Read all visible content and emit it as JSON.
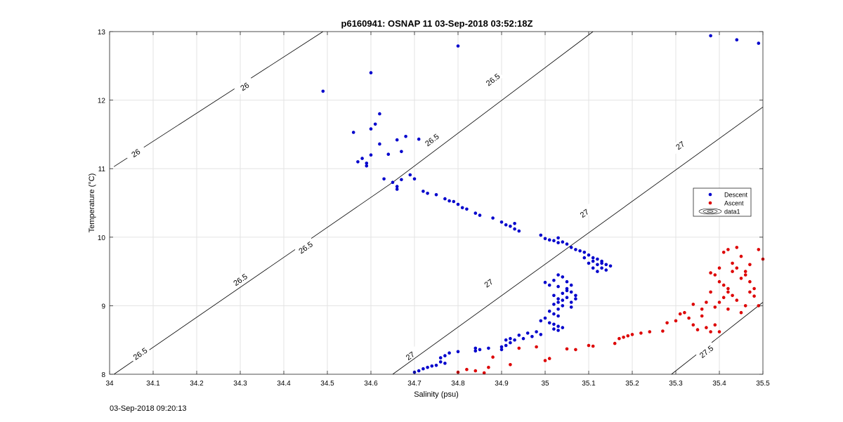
{
  "chart_data": {
    "type": "scatter",
    "title": "p6160941: OSNAP 11 03-Sep-2018 03:52:18Z",
    "xlabel": "Salinity (psu)",
    "ylabel": "Temperature (°C)",
    "xlim": [
      34,
      35.5
    ],
    "ylim": [
      8,
      13
    ],
    "xticks": [
      "34",
      "34.1",
      "34.2",
      "34.3",
      "34.4",
      "34.5",
      "34.6",
      "34.7",
      "34.8",
      "34.9",
      "35",
      "35.1",
      "35.2",
      "35.3",
      "35.4",
      "35.5"
    ],
    "yticks": [
      "8",
      "9",
      "10",
      "11",
      "12",
      "13"
    ],
    "grid": true,
    "legend": {
      "placement": "right",
      "entries": [
        {
          "label": "Descent",
          "color": "#0000cc",
          "marker": "dot"
        },
        {
          "label": "Ascent",
          "color": "#dd0000",
          "marker": "dot"
        },
        {
          "label": "data1",
          "color": "#000000",
          "marker": "contour"
        }
      ]
    },
    "contours": [
      {
        "value": "26",
        "segments": [
          [
            [
              34.01,
              11.03
            ],
            [
              34.49,
              13.0
            ]
          ]
        ],
        "labels": [
          {
            "x": 34.31,
            "y": 12.2,
            "text": "26"
          },
          {
            "x": 34.06,
            "y": 11.23,
            "text": "26"
          }
        ]
      },
      {
        "value": "26.5",
        "segments": [
          [
            [
              34.01,
              8.0
            ],
            [
              34.65,
              10.8
            ],
            [
              35.11,
              13.0
            ]
          ]
        ],
        "labels": [
          {
            "x": 34.88,
            "y": 12.3,
            "text": "26.5"
          },
          {
            "x": 34.74,
            "y": 11.42,
            "text": "26.5"
          },
          {
            "x": 34.45,
            "y": 9.85,
            "text": "26.5"
          },
          {
            "x": 34.3,
            "y": 9.38,
            "text": "26.5"
          },
          {
            "x": 34.07,
            "y": 8.3,
            "text": "26.5"
          }
        ]
      },
      {
        "value": "27",
        "segments": [
          [
            [
              34.65,
              8.0
            ],
            [
              35.5,
              11.9
            ]
          ]
        ],
        "labels": [
          {
            "x": 35.31,
            "y": 11.34,
            "text": "27"
          },
          {
            "x": 35.09,
            "y": 10.35,
            "text": "27"
          },
          {
            "x": 34.87,
            "y": 9.33,
            "text": "27"
          },
          {
            "x": 34.69,
            "y": 8.27,
            "text": "27"
          }
        ]
      },
      {
        "value": "27.5",
        "segments": [
          [
            [
              35.29,
              8.0
            ],
            [
              35.5,
              9.05
            ]
          ]
        ],
        "labels": [
          {
            "x": 35.37,
            "y": 8.33,
            "text": "27.5"
          }
        ]
      }
    ],
    "series": [
      {
        "name": "Descent",
        "color": "#0000cc",
        "points": [
          [
            34.49,
            12.13
          ],
          [
            34.6,
            12.4
          ],
          [
            34.8,
            12.79
          ],
          [
            35.38,
            12.94
          ],
          [
            35.44,
            12.88
          ],
          [
            35.49,
            12.83
          ],
          [
            34.56,
            11.53
          ],
          [
            34.6,
            11.58
          ],
          [
            34.61,
            11.65
          ],
          [
            34.62,
            11.8
          ],
          [
            34.62,
            11.36
          ],
          [
            34.6,
            11.2
          ],
          [
            34.64,
            11.21
          ],
          [
            34.66,
            11.42
          ],
          [
            34.68,
            11.47
          ],
          [
            34.71,
            11.43
          ],
          [
            34.67,
            11.25
          ],
          [
            34.58,
            11.15
          ],
          [
            34.59,
            11.08
          ],
          [
            34.59,
            11.04
          ],
          [
            34.57,
            11.1
          ],
          [
            34.63,
            10.85
          ],
          [
            34.65,
            10.8
          ],
          [
            34.66,
            10.74
          ],
          [
            34.66,
            10.7
          ],
          [
            34.67,
            10.84
          ],
          [
            34.69,
            10.91
          ],
          [
            34.7,
            10.85
          ],
          [
            34.72,
            10.67
          ],
          [
            34.73,
            10.64
          ],
          [
            34.75,
            10.62
          ],
          [
            34.77,
            10.56
          ],
          [
            34.78,
            10.53
          ],
          [
            34.79,
            10.52
          ],
          [
            34.8,
            10.48
          ],
          [
            34.81,
            10.43
          ],
          [
            34.82,
            10.41
          ],
          [
            34.84,
            10.35
          ],
          [
            34.85,
            10.32
          ],
          [
            34.88,
            10.28
          ],
          [
            34.9,
            10.22
          ],
          [
            34.91,
            10.18
          ],
          [
            34.92,
            10.16
          ],
          [
            34.93,
            10.12
          ],
          [
            34.94,
            10.09
          ],
          [
            34.93,
            10.2
          ],
          [
            34.99,
            10.03
          ],
          [
            35.0,
            9.98
          ],
          [
            35.01,
            9.96
          ],
          [
            35.02,
            9.95
          ],
          [
            35.03,
            9.99
          ],
          [
            35.04,
            9.93
          ],
          [
            35.05,
            9.9
          ],
          [
            35.03,
            9.92
          ],
          [
            35.06,
            9.85
          ],
          [
            35.07,
            9.82
          ],
          [
            35.08,
            9.8
          ],
          [
            35.09,
            9.78
          ],
          [
            35.1,
            9.74
          ],
          [
            35.09,
            9.7
          ],
          [
            35.11,
            9.7
          ],
          [
            35.12,
            9.68
          ],
          [
            35.13,
            9.65
          ],
          [
            35.14,
            9.6
          ],
          [
            35.15,
            9.58
          ],
          [
            35.13,
            9.55
          ],
          [
            35.12,
            9.6
          ],
          [
            35.14,
            9.52
          ],
          [
            35.12,
            9.5
          ],
          [
            35.11,
            9.55
          ],
          [
            35.13,
            9.62
          ],
          [
            35.1,
            9.62
          ],
          [
            35.11,
            9.65
          ],
          [
            35.03,
            9.45
          ],
          [
            35.04,
            9.42
          ],
          [
            35.02,
            9.37
          ],
          [
            35.0,
            9.34
          ],
          [
            35.01,
            9.3
          ],
          [
            35.03,
            9.28
          ],
          [
            35.05,
            9.25
          ],
          [
            35.06,
            9.2
          ],
          [
            35.07,
            9.15
          ],
          [
            35.05,
            9.12
          ],
          [
            35.04,
            9.08
          ],
          [
            35.03,
            9.05
          ],
          [
            35.02,
            9.02
          ],
          [
            35.04,
            9.0
          ],
          [
            35.06,
            8.98
          ],
          [
            35.03,
            8.95
          ],
          [
            35.01,
            8.92
          ],
          [
            35.02,
            8.88
          ],
          [
            35.03,
            8.85
          ],
          [
            35.0,
            8.82
          ],
          [
            34.99,
            8.78
          ],
          [
            35.01,
            8.75
          ],
          [
            35.02,
            8.73
          ],
          [
            35.03,
            8.7
          ],
          [
            35.04,
            8.68
          ],
          [
            35.02,
            8.66
          ],
          [
            35.03,
            8.64
          ],
          [
            35.05,
            9.35
          ],
          [
            35.06,
            9.3
          ],
          [
            35.07,
            9.1
          ],
          [
            35.06,
            9.05
          ],
          [
            35.04,
            9.18
          ],
          [
            35.05,
            9.22
          ],
          [
            35.03,
            9.1
          ],
          [
            35.02,
            9.15
          ],
          [
            34.98,
            8.62
          ],
          [
            34.99,
            8.58
          ],
          [
            34.97,
            8.55
          ],
          [
            34.95,
            8.52
          ],
          [
            34.96,
            8.6
          ],
          [
            34.94,
            8.57
          ],
          [
            34.91,
            8.5
          ],
          [
            34.92,
            8.46
          ],
          [
            34.91,
            8.42
          ],
          [
            34.9,
            8.4
          ],
          [
            34.9,
            8.36
          ],
          [
            34.92,
            8.52
          ],
          [
            34.93,
            8.5
          ],
          [
            34.87,
            8.38
          ],
          [
            34.85,
            8.36
          ],
          [
            34.84,
            8.34
          ],
          [
            34.84,
            8.38
          ],
          [
            34.8,
            8.33
          ],
          [
            34.78,
            8.31
          ],
          [
            34.77,
            8.27
          ],
          [
            34.76,
            8.24
          ],
          [
            34.76,
            8.18
          ],
          [
            34.77,
            8.16
          ],
          [
            34.75,
            8.13
          ],
          [
            34.74,
            8.12
          ],
          [
            34.72,
            8.08
          ],
          [
            34.71,
            8.05
          ],
          [
            34.73,
            8.1
          ],
          [
            34.7,
            8.03
          ]
        ]
      },
      {
        "name": "Ascent",
        "color": "#dd0000",
        "points": [
          [
            34.8,
            8.03
          ],
          [
            34.82,
            8.07
          ],
          [
            34.84,
            8.05
          ],
          [
            34.87,
            8.1
          ],
          [
            34.86,
            8.02
          ],
          [
            34.88,
            8.25
          ],
          [
            34.92,
            8.14
          ],
          [
            34.94,
            8.38
          ],
          [
            34.98,
            8.4
          ],
          [
            35.0,
            8.2
          ],
          [
            35.01,
            8.23
          ],
          [
            35.05,
            8.37
          ],
          [
            35.07,
            8.36
          ],
          [
            35.1,
            8.42
          ],
          [
            35.11,
            8.41
          ],
          [
            35.16,
            8.45
          ],
          [
            35.17,
            8.52
          ],
          [
            35.18,
            8.54
          ],
          [
            35.19,
            8.56
          ],
          [
            35.2,
            8.58
          ],
          [
            35.22,
            8.6
          ],
          [
            35.24,
            8.62
          ],
          [
            35.27,
            8.63
          ],
          [
            35.28,
            8.75
          ],
          [
            35.3,
            8.78
          ],
          [
            35.31,
            8.88
          ],
          [
            35.32,
            8.9
          ],
          [
            35.33,
            8.82
          ],
          [
            35.35,
            8.65
          ],
          [
            35.34,
            8.72
          ],
          [
            35.36,
            8.85
          ],
          [
            35.37,
            8.68
          ],
          [
            35.38,
            8.62
          ],
          [
            35.39,
            8.98
          ],
          [
            35.4,
            9.05
          ],
          [
            35.41,
            9.12
          ],
          [
            35.42,
            9.2
          ],
          [
            35.43,
            9.15
          ],
          [
            35.44,
            9.08
          ],
          [
            35.46,
            9.0
          ],
          [
            35.48,
            9.14
          ],
          [
            35.5,
            9.68
          ],
          [
            35.49,
            9.82
          ],
          [
            35.47,
            9.6
          ],
          [
            35.46,
            9.5
          ],
          [
            35.45,
            9.72
          ],
          [
            35.44,
            9.85
          ],
          [
            35.43,
            9.62
          ],
          [
            35.42,
            9.82
          ],
          [
            35.41,
            9.78
          ],
          [
            35.4,
            9.55
          ],
          [
            35.39,
            9.45
          ],
          [
            35.38,
            9.48
          ],
          [
            35.4,
            9.35
          ],
          [
            35.41,
            9.3
          ],
          [
            35.42,
            9.25
          ],
          [
            35.45,
            9.4
          ],
          [
            35.47,
            9.35
          ],
          [
            35.48,
            9.25
          ],
          [
            35.46,
            9.45
          ],
          [
            35.43,
            9.5
          ],
          [
            35.38,
            9.2
          ],
          [
            35.37,
            9.05
          ],
          [
            35.36,
            8.95
          ],
          [
            35.34,
            9.02
          ],
          [
            35.39,
            8.72
          ],
          [
            35.4,
            8.62
          ],
          [
            35.42,
            8.95
          ],
          [
            35.44,
            9.55
          ],
          [
            35.47,
            9.2
          ],
          [
            35.49,
            9.0
          ],
          [
            35.45,
            8.9
          ]
        ]
      }
    ]
  },
  "footer": {
    "timestamp": "03-Sep-2018 09:20:13"
  }
}
